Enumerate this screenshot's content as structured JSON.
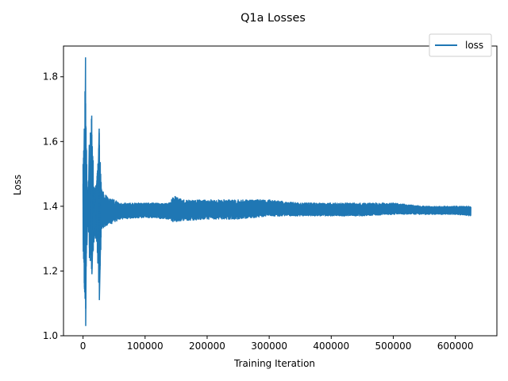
{
  "chart_data": {
    "type": "line",
    "title": "Q1a Losses",
    "xlabel": "Training Iteration",
    "ylabel": "Loss",
    "xlim": [
      -31500,
      667000
    ],
    "ylim": [
      1.0,
      1.895
    ],
    "xticks": [
      0,
      100000,
      200000,
      300000,
      400000,
      500000,
      600000
    ],
    "xtick_labels": [
      "0",
      "100000",
      "200000",
      "300000",
      "400000",
      "500000",
      "600000"
    ],
    "yticks": [
      1.0,
      1.2,
      1.4,
      1.6,
      1.8
    ],
    "ytick_labels": [
      "1.0",
      "1.2",
      "1.4",
      "1.6",
      "1.8"
    ],
    "grid": false,
    "legend": {
      "position": "top-right"
    },
    "series": [
      {
        "name": "loss",
        "color": "#1f77b4",
        "envelope": {
          "x": [
            0,
            2000,
            4000,
            6000,
            8000,
            10000,
            14000,
            18000,
            22000,
            26000,
            30000,
            40000,
            60000,
            100000,
            140000,
            145000,
            160000,
            200000,
            250000,
            300000,
            350000,
            400000,
            450000,
            500000,
            550000,
            600000,
            625000
          ],
          "max": [
            1.53,
            1.64,
            1.86,
            1.53,
            1.44,
            1.59,
            1.68,
            1.46,
            1.47,
            1.64,
            1.45,
            1.43,
            1.41,
            1.41,
            1.41,
            1.435,
            1.42,
            1.42,
            1.42,
            1.42,
            1.41,
            1.41,
            1.41,
            1.41,
            1.4,
            1.4,
            1.4
          ],
          "min": [
            1.26,
            1.15,
            1.03,
            1.28,
            1.34,
            1.24,
            1.19,
            1.3,
            1.29,
            1.11,
            1.33,
            1.34,
            1.36,
            1.365,
            1.36,
            1.35,
            1.355,
            1.36,
            1.36,
            1.37,
            1.37,
            1.37,
            1.37,
            1.375,
            1.375,
            1.375,
            1.37
          ]
        }
      }
    ]
  }
}
